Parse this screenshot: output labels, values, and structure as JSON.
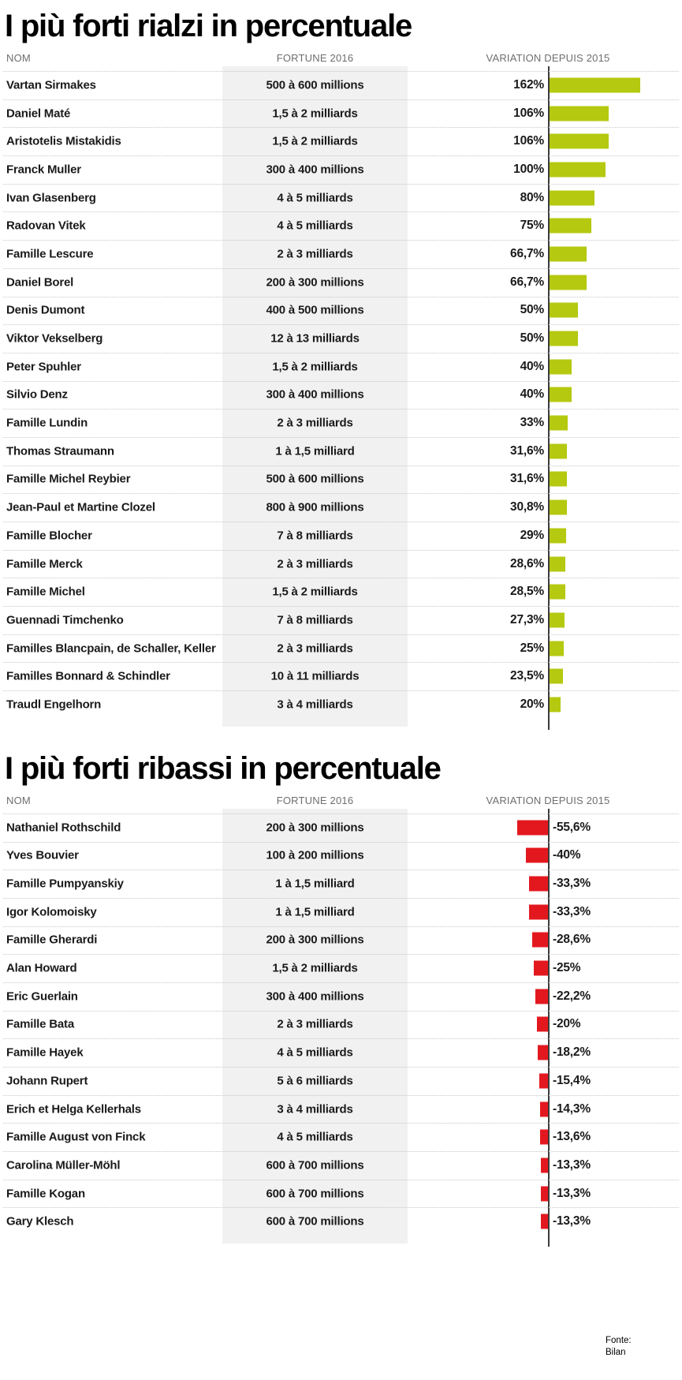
{
  "source": {
    "label": "Fonte:",
    "value": "Bilan"
  },
  "colors": {
    "positive_bar": "#b4c90f",
    "negative_bar": "#e3181f",
    "axis": "#3b3b3b",
    "fortune_band": "#f1f1f1",
    "separator": "#c6c6c6"
  },
  "chart_data": [
    {
      "type": "bar",
      "orientation": "horizontal",
      "title": "I più forti rialzi in percentuale",
      "columns": [
        "NOM",
        "FORTUNE 2016",
        "VARIATION DEPUIS 2015"
      ],
      "bar_color": "#b4c90f",
      "xlim": [
        0,
        170
      ],
      "categories": [
        "Vartan Sirmakes",
        "Daniel Maté",
        "Aristotelis Mistakidis",
        "Franck Muller",
        "Ivan Glasenberg",
        "Radovan Vitek",
        "Famille Lescure",
        "Daniel Borel",
        "Denis Dumont",
        "Viktor Vekselberg",
        "Peter Spuhler",
        "Silvio Denz",
        "Famille Lundin",
        "Thomas Straumann",
        "Famille Michel Reybier",
        "Jean-Paul et Martine Clozel",
        "Famille Blocher",
        "Famille Merck",
        "Famille Michel",
        "Guennadi Timchenko",
        "Familles Blancpain, de Schaller, Keller",
        "Familles Bonnard & Schindler",
        "Traudl Engelhorn"
      ],
      "fortunes": [
        "500 à 600 millions",
        "1,5 à 2 milliards",
        "1,5 à 2 milliards",
        "300 à 400 millions",
        "4 à 5 milliards",
        "4 à 5 milliards",
        "2 à 3 milliards",
        "200 à 300 millions",
        "400 à 500 millions",
        "12 à 13 milliards",
        "1,5 à 2 milliards",
        "300 à 400 millions",
        "2 à 3 milliards",
        "1 à 1,5 milliard",
        "500 à 600 millions",
        "800 à 900 millions",
        "7 à 8 milliards",
        "2 à 3 milliards",
        "1,5 à 2 milliards",
        "7 à 8 milliards",
        "2 à 3 milliards",
        "10 à 11 milliards",
        "3 à 4 milliards"
      ],
      "labels": [
        "162%",
        "106%",
        "106%",
        "100%",
        "80%",
        "75%",
        "66,7%",
        "66,7%",
        "50%",
        "50%",
        "40%",
        "40%",
        "33%",
        "31,6%",
        "31,6%",
        "30,8%",
        "29%",
        "28,6%",
        "28,5%",
        "27,3%",
        "25%",
        "23,5%",
        "20%"
      ],
      "values": [
        162,
        106,
        106,
        100,
        80,
        75,
        66.7,
        66.7,
        50,
        50,
        40,
        40,
        33,
        31.6,
        31.6,
        30.8,
        29,
        28.6,
        28.5,
        27.3,
        25,
        23.5,
        20
      ]
    },
    {
      "type": "bar",
      "orientation": "horizontal",
      "title": "I più forti ribassi in percentuale",
      "columns": [
        "NOM",
        "FORTUNE 2016",
        "VARIATION DEPUIS 2015"
      ],
      "bar_color": "#e3181f",
      "xlim": [
        -60,
        0
      ],
      "categories": [
        "Nathaniel Rothschild",
        "Yves Bouvier",
        "Famille Pumpyanskiy",
        "Igor Kolomoisky",
        "Famille Gherardi",
        "Alan Howard",
        "Eric Guerlain",
        "Famille Bata",
        "Famille Hayek",
        "Johann Rupert",
        "Erich et Helga Kellerhals",
        "Famille August von Finck",
        "Carolina Müller-Möhl",
        "Famille Kogan",
        "Gary Klesch"
      ],
      "fortunes": [
        "200 à 300 millions",
        "100 à 200 millions",
        "1 à 1,5 milliard",
        "1 à 1,5 milliard",
        "200 à 300 millions",
        "1,5 à 2 milliards",
        "300 à 400 millions",
        "2 à 3 milliards",
        "4 à 5 milliards",
        "5 à 6 milliards",
        "3 à 4 milliards",
        "4 à 5 milliards",
        "600 à 700 millions",
        "600 à 700 millions",
        "600 à 700 millions"
      ],
      "labels": [
        "-55,6%",
        "-40%",
        "-33,3%",
        "-33,3%",
        "-28,6%",
        "-25%",
        "-22,2%",
        "-20%",
        "-18,2%",
        "-15,4%",
        "-14,3%",
        "-13,6%",
        "-13,3%",
        "-13,3%",
        "-13,3%"
      ],
      "values": [
        -55.6,
        -40,
        -33.3,
        -33.3,
        -28.6,
        -25,
        -22.2,
        -20,
        -18.2,
        -15.4,
        -14.3,
        -13.6,
        -13.3,
        -13.3,
        -13.3
      ]
    }
  ]
}
